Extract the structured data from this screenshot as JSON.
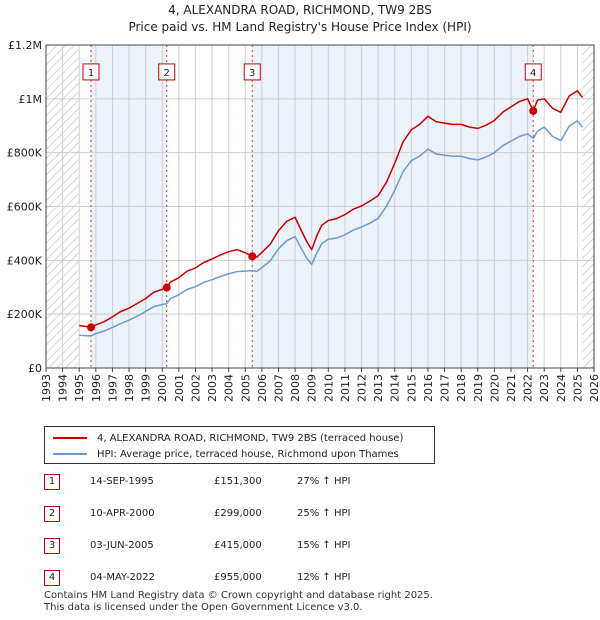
{
  "title_line1": "4, ALEXANDRA ROAD, RICHMOND, TW9 2BS",
  "title_line2": "Price paid vs. HM Land Registry's House Price Index (HPI)",
  "chart_data": {
    "type": "line",
    "xlim": [
      1993.0,
      2026.0
    ],
    "ylim": [
      0,
      1200000
    ],
    "y_ticks": [
      0,
      200000,
      400000,
      600000,
      800000,
      1000000,
      1200000
    ],
    "y_tick_labels": [
      "£0",
      "£200K",
      "£400K",
      "£600K",
      "£800K",
      "£1M",
      "£1.2M"
    ],
    "x_ticks": [
      1993,
      1994,
      1995,
      1996,
      1997,
      1998,
      1999,
      2000,
      2001,
      2002,
      2003,
      2004,
      2005,
      2006,
      2007,
      2008,
      2009,
      2010,
      2011,
      2012,
      2013,
      2014,
      2015,
      2016,
      2017,
      2018,
      2019,
      2020,
      2021,
      2022,
      2023,
      2024,
      2025,
      2026
    ],
    "grid": true,
    "hatched_before": 1995.0,
    "hatched_after": 2025.3,
    "series": [
      {
        "name": "4, ALEXANDRA ROAD, RICHMOND, TW9 2BS (terraced house)",
        "color": "#cc0000",
        "x": [
          1995.0,
          1995.71,
          1996.0,
          1996.5,
          1997.0,
          1997.5,
          1998.0,
          1998.5,
          1999.0,
          1999.5,
          2000.0,
          2000.27,
          2000.5,
          2001.0,
          2001.5,
          2002.0,
          2002.5,
          2003.0,
          2003.5,
          2004.0,
          2004.5,
          2005.0,
          2005.42,
          2005.7,
          2006.0,
          2006.5,
          2007.0,
          2007.5,
          2008.0,
          2008.3,
          2008.7,
          2009.0,
          2009.3,
          2009.6,
          2010.0,
          2010.5,
          2011.0,
          2011.5,
          2012.0,
          2012.5,
          2013.0,
          2013.5,
          2014.0,
          2014.5,
          2015.0,
          2015.5,
          2016.0,
          2016.5,
          2017.0,
          2017.5,
          2018.0,
          2018.5,
          2019.0,
          2019.5,
          2020.0,
          2020.5,
          2021.0,
          2021.5,
          2022.0,
          2022.34,
          2022.6,
          2023.0,
          2023.5,
          2024.0,
          2024.5,
          2025.0,
          2025.3
        ],
        "y": [
          158000,
          151300,
          160000,
          172000,
          190000,
          210000,
          222000,
          240000,
          258000,
          282000,
          292000,
          299000,
          320000,
          335000,
          360000,
          372000,
          392000,
          405000,
          420000,
          432000,
          440000,
          428000,
          415000,
          412000,
          430000,
          460000,
          510000,
          545000,
          560000,
          520000,
          470000,
          440000,
          490000,
          530000,
          548000,
          555000,
          570000,
          590000,
          602000,
          620000,
          640000,
          690000,
          760000,
          840000,
          885000,
          905000,
          935000,
          915000,
          910000,
          905000,
          905000,
          895000,
          890000,
          902000,
          920000,
          950000,
          970000,
          990000,
          1000000,
          955000,
          995000,
          1000000,
          965000,
          950000,
          1010000,
          1030000,
          1005000
        ]
      },
      {
        "name": "HPI: Average price, terraced house, Richmond upon Thames",
        "color": "#6b9bd2",
        "x": [
          1995.0,
          1995.71,
          1996.0,
          1996.5,
          1997.0,
          1997.5,
          1998.0,
          1998.5,
          1999.0,
          1999.5,
          2000.0,
          2000.27,
          2000.5,
          2001.0,
          2001.5,
          2002.0,
          2002.5,
          2003.0,
          2003.5,
          2004.0,
          2004.5,
          2005.0,
          2005.42,
          2005.7,
          2006.0,
          2006.5,
          2007.0,
          2007.5,
          2008.0,
          2008.3,
          2008.7,
          2009.0,
          2009.3,
          2009.6,
          2010.0,
          2010.5,
          2011.0,
          2011.5,
          2012.0,
          2012.5,
          2013.0,
          2013.5,
          2014.0,
          2014.5,
          2015.0,
          2015.5,
          2016.0,
          2016.5,
          2017.0,
          2017.5,
          2018.0,
          2018.5,
          2019.0,
          2019.5,
          2020.0,
          2020.5,
          2021.0,
          2021.5,
          2022.0,
          2022.34,
          2022.6,
          2023.0,
          2023.5,
          2024.0,
          2024.5,
          2025.0,
          2025.3
        ],
        "y": [
          122000,
          119000,
          128000,
          137000,
          150000,
          165000,
          178000,
          193000,
          210000,
          228000,
          236000,
          239000,
          258000,
          272000,
          292000,
          302000,
          318000,
          328000,
          340000,
          350000,
          358000,
          360000,
          361000,
          359000,
          373000,
          398000,
          443000,
          473000,
          488000,
          452000,
          408000,
          385000,
          426000,
          462000,
          478000,
          483000,
          495000,
          512000,
          524000,
          538000,
          556000,
          600000,
          660000,
          729000,
          770000,
          787000,
          813000,
          795000,
          791000,
          787000,
          787000,
          778000,
          773000,
          784000,
          800000,
          826000,
          843000,
          860000,
          870000,
          853000,
          880000,
          895000,
          860000,
          845000,
          898000,
          918000,
          895000
        ]
      }
    ],
    "sale_markers": [
      {
        "label": "1",
        "x": 1995.71,
        "y": 151300
      },
      {
        "label": "2",
        "x": 2000.27,
        "y": 299000
      },
      {
        "label": "3",
        "x": 2005.42,
        "y": 415000
      },
      {
        "label": "4",
        "x": 2022.34,
        "y": 955000
      }
    ],
    "marker_label_y": 1100000
  },
  "legend": {
    "property_label": "4, ALEXANDRA ROAD, RICHMOND, TW9 2BS (terraced house)",
    "hpi_label": "HPI: Average price, terraced house, Richmond upon Thames",
    "property_color": "#cc0000",
    "hpi_color": "#6b9bd2"
  },
  "sales": [
    {
      "num": "1",
      "date": "14-SEP-1995",
      "price": "£151,300",
      "hpi_change": "27% ↑ HPI"
    },
    {
      "num": "2",
      "date": "10-APR-2000",
      "price": "£299,000",
      "hpi_change": "25% ↑ HPI"
    },
    {
      "num": "3",
      "date": "03-JUN-2005",
      "price": "£415,000",
      "hpi_change": "15% ↑ HPI"
    },
    {
      "num": "4",
      "date": "04-MAY-2022",
      "price": "£955,000",
      "hpi_change": "12% ↑ HPI"
    }
  ],
  "footer_line1": "Contains HM Land Registry data © Crown copyright and database right 2025.",
  "footer_line2": "This data is licensed under the Open Government Licence v3.0."
}
